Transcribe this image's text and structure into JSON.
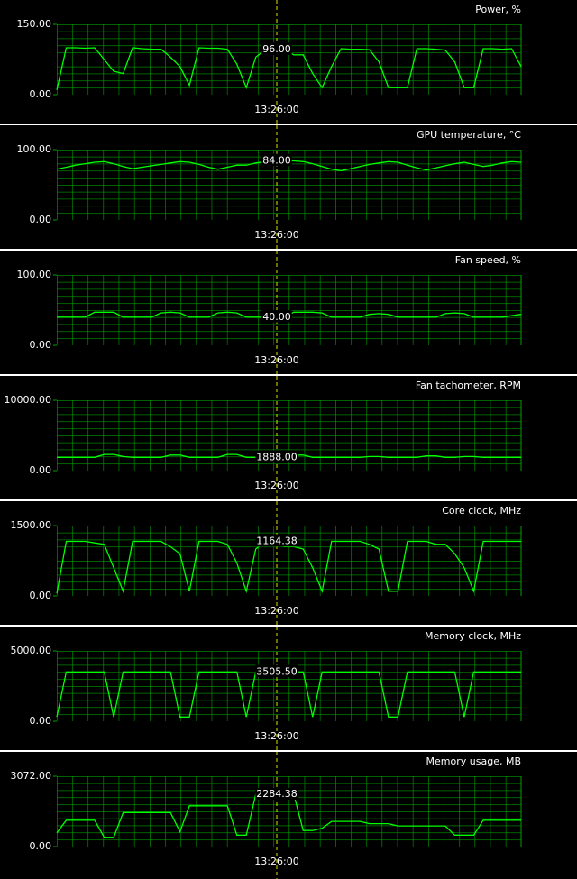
{
  "chart_data": [
    {
      "type": "line",
      "title": "Power, %",
      "color": "#00ff00",
      "ylim": [
        0,
        150
      ],
      "yticks": [
        {
          "value": 0,
          "label": "0.00"
        },
        {
          "value": 150,
          "label": "150.00"
        }
      ],
      "cursor_label": "13:26:00",
      "cursor_value": {
        "value": 96,
        "label": "96.00"
      },
      "values": [
        10,
        100,
        100,
        99,
        100,
        75,
        50,
        45,
        100,
        98,
        97,
        97,
        80,
        60,
        20,
        100,
        99,
        99,
        97,
        65,
        15,
        80,
        96,
        96,
        96,
        85,
        85,
        45,
        15,
        60,
        98,
        97,
        97,
        96,
        70,
        15,
        15,
        15,
        98,
        98,
        97,
        95,
        70,
        15,
        15,
        98,
        98,
        97,
        98,
        60
      ]
    },
    {
      "type": "line",
      "title": "GPU temperature, °C",
      "color": "#00ff00",
      "ylim": [
        0,
        100
      ],
      "yticks": [
        {
          "value": 0,
          "label": "0.00"
        },
        {
          "value": 100,
          "label": "100.00"
        }
      ],
      "cursor_label": "13:26:00",
      "cursor_value": {
        "value": 84,
        "label": "84.00"
      },
      "values": [
        72,
        75,
        78,
        80,
        82,
        83,
        80,
        76,
        73,
        75,
        77,
        79,
        81,
        83,
        82,
        79,
        75,
        72,
        75,
        78,
        78,
        81,
        83,
        84,
        84,
        84,
        83,
        80,
        76,
        72,
        70,
        73,
        76,
        79,
        81,
        83,
        82,
        78,
        74,
        71,
        74,
        77,
        80,
        82,
        79,
        76,
        78,
        81,
        83,
        82
      ]
    },
    {
      "type": "line",
      "title": "Fan speed, %",
      "color": "#00ff00",
      "ylim": [
        0,
        100
      ],
      "yticks": [
        {
          "value": 0,
          "label": "0.00"
        },
        {
          "value": 100,
          "label": "100.00"
        }
      ],
      "cursor_label": "13:26:00",
      "cursor_value": {
        "value": 40,
        "label": "40.00"
      },
      "values": [
        40,
        40,
        40,
        40,
        47,
        47,
        47,
        40,
        40,
        40,
        40,
        46,
        47,
        46,
        40,
        40,
        40,
        46,
        47,
        46,
        40,
        40,
        40,
        40,
        40,
        47,
        47,
        47,
        46,
        40,
        40,
        40,
        40,
        44,
        45,
        44,
        40,
        40,
        40,
        40,
        40,
        45,
        46,
        45,
        40,
        40,
        40,
        40,
        42,
        44
      ]
    },
    {
      "type": "line",
      "title": "Fan tachometer, RPM",
      "color": "#00ff00",
      "ylim": [
        0,
        10000
      ],
      "yticks": [
        {
          "value": 0,
          "label": "0.00"
        },
        {
          "value": 10000,
          "label": "10000.00"
        }
      ],
      "cursor_label": "13:26:00",
      "cursor_value": {
        "value": 1888,
        "label": "1888.00"
      },
      "values": [
        1888,
        1888,
        1888,
        1888,
        1888,
        2300,
        2300,
        2000,
        1888,
        1888,
        1888,
        1888,
        2200,
        2200,
        1888,
        1888,
        1888,
        1888,
        2300,
        2300,
        1888,
        1888,
        1888,
        1888,
        1888,
        2200,
        2200,
        1888,
        1888,
        1888,
        1888,
        1888,
        1888,
        2000,
        2000,
        1888,
        1888,
        1888,
        1888,
        2100,
        2100,
        1888,
        1888,
        2000,
        2000,
        1888,
        1888,
        1888,
        1888,
        1888
      ]
    },
    {
      "type": "line",
      "title": "Core clock, MHz",
      "color": "#00ff00",
      "ylim": [
        0,
        1500
      ],
      "yticks": [
        {
          "value": 0,
          "label": "0.00"
        },
        {
          "value": 1500,
          "label": "1500.00"
        }
      ],
      "cursor_label": "13:26:00",
      "cursor_value": {
        "value": 1164.38,
        "label": "1164.38"
      },
      "values": [
        50,
        1164,
        1164,
        1164,
        1130,
        1100,
        600,
        100,
        1164,
        1164,
        1164,
        1164,
        1050,
        900,
        100,
        1164,
        1164,
        1164,
        1100,
        700,
        100,
        1000,
        1164,
        1164,
        1050,
        1050,
        1000,
        600,
        100,
        1164,
        1164,
        1164,
        1164,
        1100,
        1000,
        100,
        100,
        1164,
        1164,
        1164,
        1100,
        1100,
        900,
        600,
        100,
        1164,
        1164,
        1164,
        1164,
        1164
      ]
    },
    {
      "type": "line",
      "title": "Memory clock, MHz",
      "color": "#00ff00",
      "ylim": [
        0,
        5000
      ],
      "yticks": [
        {
          "value": 0,
          "label": "0.00"
        },
        {
          "value": 5000,
          "label": "5000.00"
        }
      ],
      "cursor_label": "13:26:00",
      "cursor_value": {
        "value": 3505.5,
        "label": "3505.50"
      },
      "values": [
        300,
        3505,
        3505,
        3505,
        3505,
        3505,
        300,
        3505,
        3505,
        3505,
        3505,
        3505,
        3505,
        300,
        300,
        3505,
        3505,
        3505,
        3505,
        3505,
        300,
        3505,
        3505,
        3505,
        3505,
        3505,
        3505,
        300,
        3505,
        3505,
        3505,
        3505,
        3505,
        3505,
        3505,
        300,
        300,
        3505,
        3505,
        3505,
        3505,
        3505,
        3505,
        300,
        3505,
        3505,
        3505,
        3505,
        3505,
        3505
      ]
    },
    {
      "type": "line",
      "title": "Memory usage, MB",
      "color": "#00ff00",
      "ylim": [
        0,
        3072
      ],
      "yticks": [
        {
          "value": 0,
          "label": "0.00"
        },
        {
          "value": 3072,
          "label": "3072.00"
        }
      ],
      "cursor_label": "13:26:00",
      "cursor_value": {
        "value": 2284.38,
        "label": "2284.38"
      },
      "values": [
        600,
        1150,
        1150,
        1150,
        1150,
        400,
        400,
        1480,
        1480,
        1480,
        1480,
        1480,
        1480,
        645,
        1780,
        1780,
        1780,
        1780,
        1780,
        500,
        500,
        2284,
        2284,
        2284,
        2284,
        2284,
        700,
        700,
        800,
        1100,
        1100,
        1100,
        1100,
        1000,
        1000,
        1000,
        900,
        900,
        900,
        900,
        900,
        900,
        500,
        500,
        500,
        1150,
        1150,
        1150,
        1150,
        1150
      ]
    }
  ]
}
